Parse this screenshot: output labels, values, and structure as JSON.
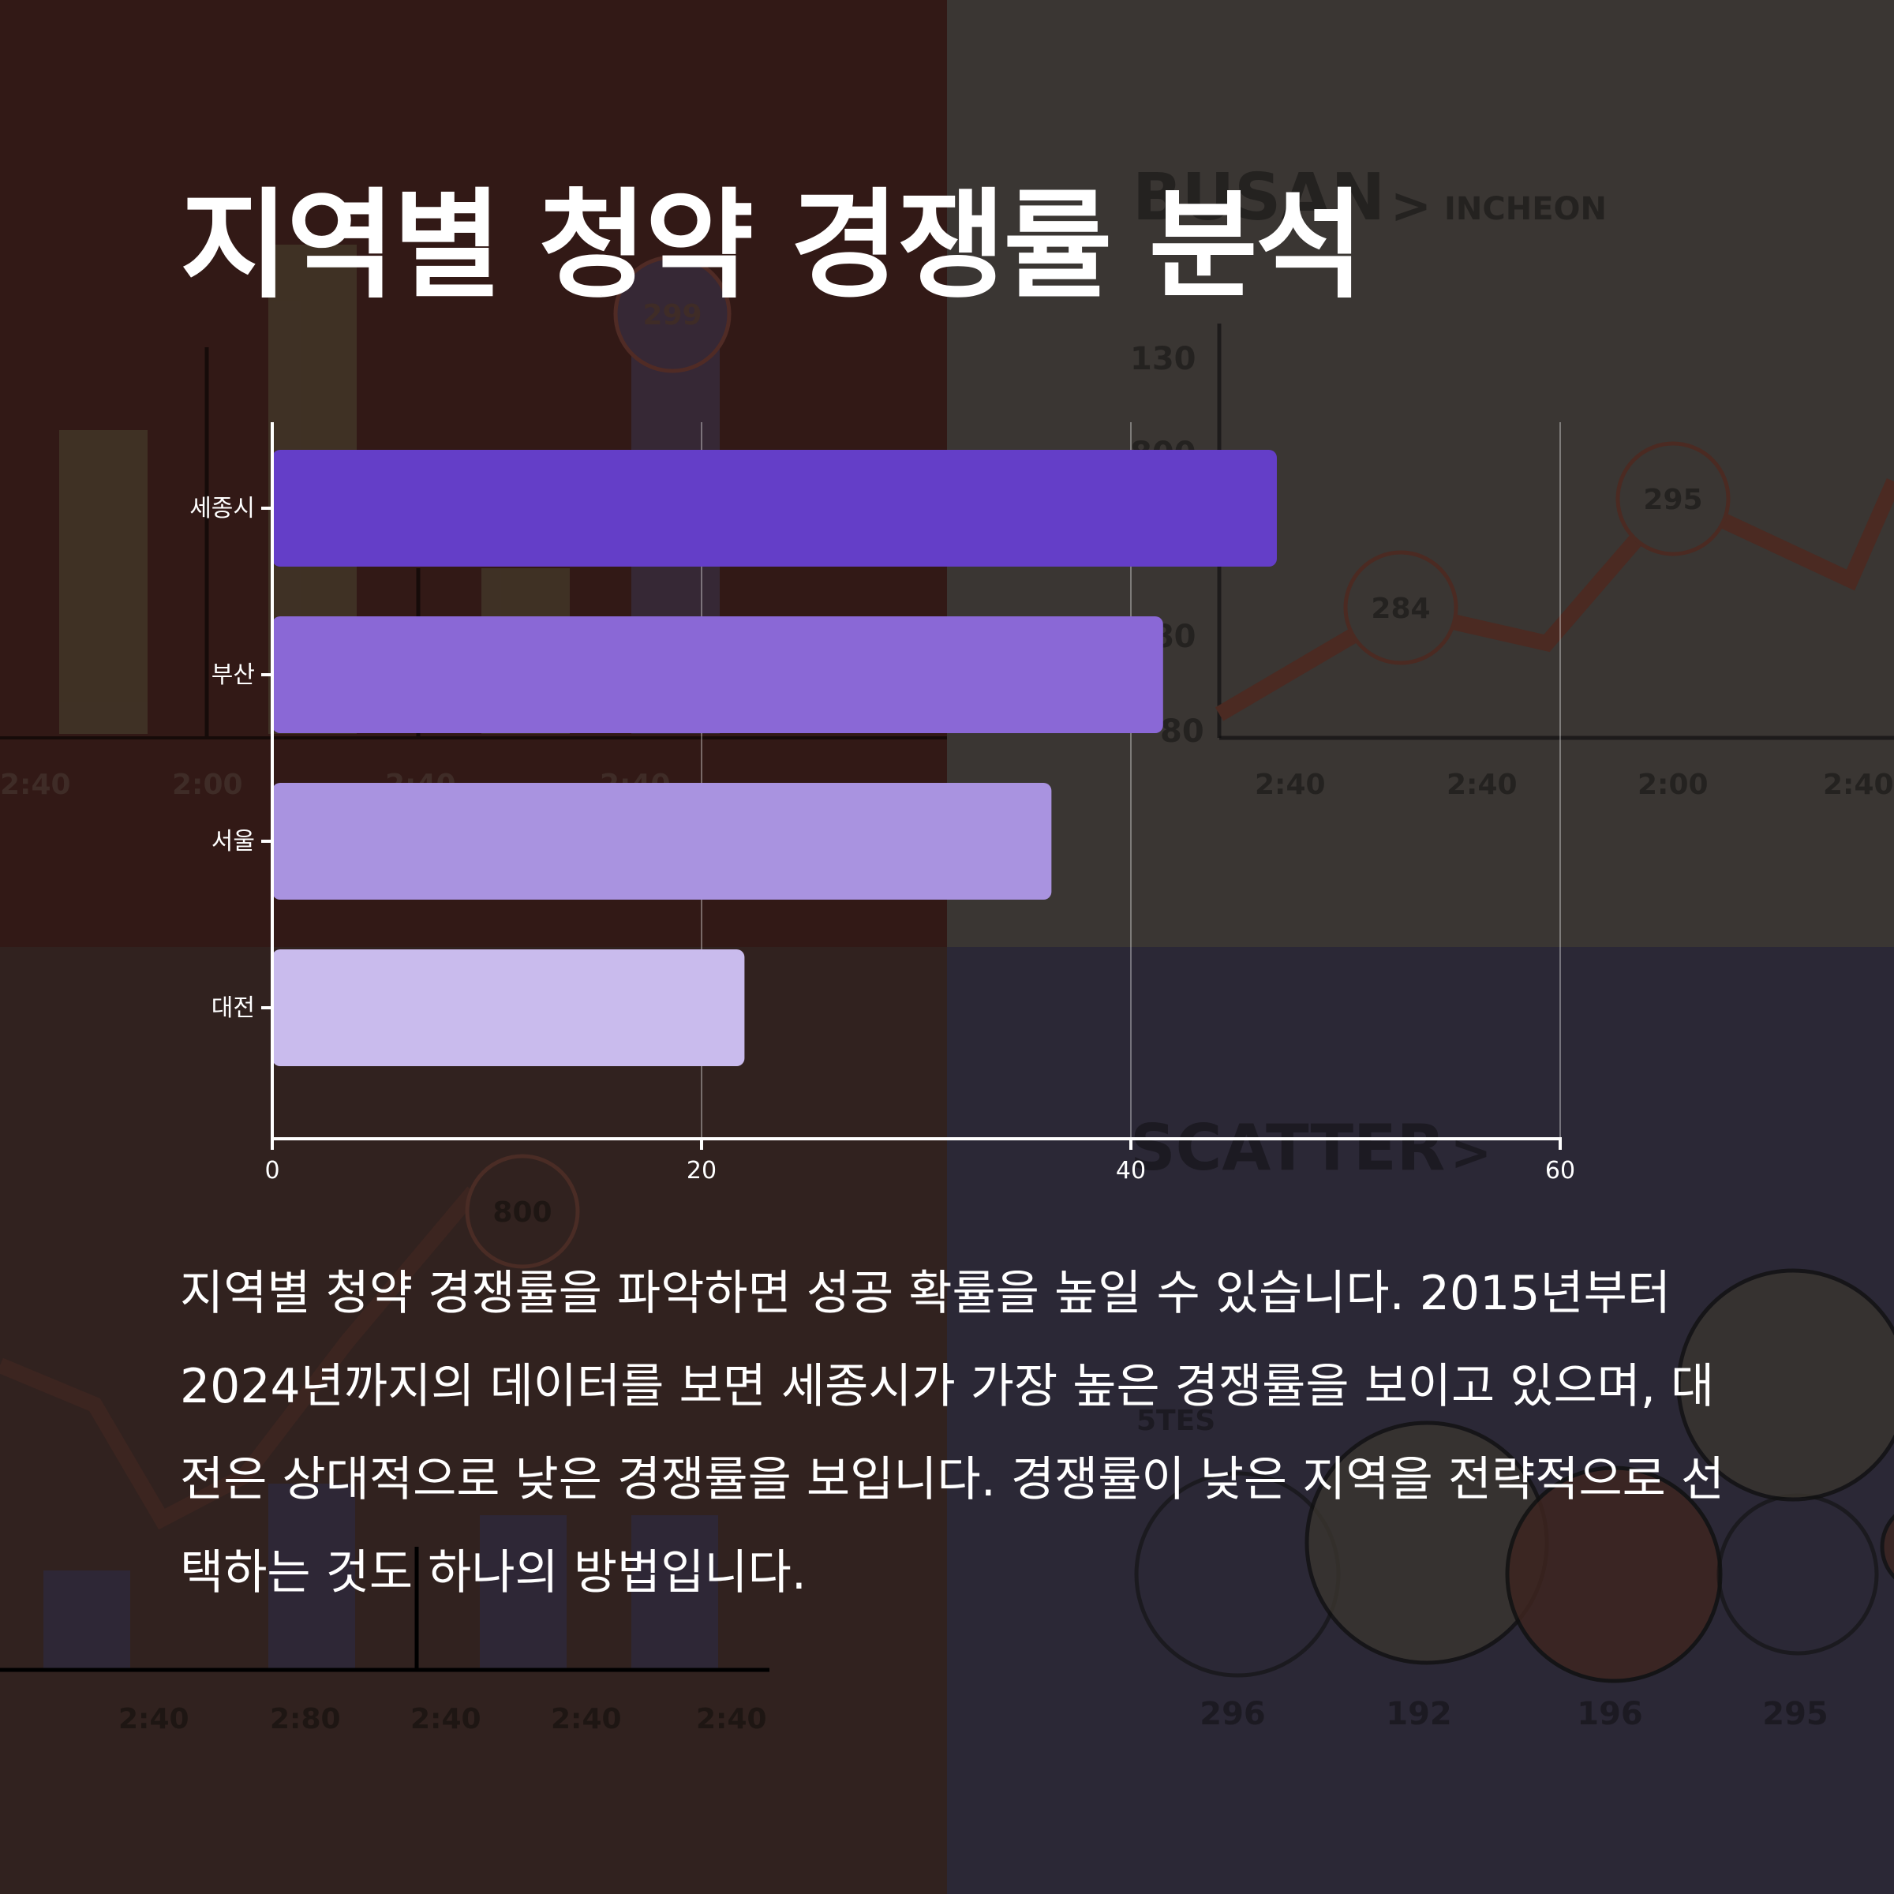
{
  "title": "지역별 청약 경쟁률 분석",
  "description": "지역별 청약 경쟁률을 파악하면 성공 확률을 높일 수 있습니다. 2015년부터 2024년까지의 데이터를 보면 세종시가 가장 높은 경쟁률을 보이고 있으며, 대전은 상대적으로 낮은 경쟁률을 보입니다. 경쟁률이 낮은 지역을 전략적으로 선택하는 것도 하나의 방법입니다.",
  "background": {
    "colors": {
      "top_left": "#321916",
      "top_right": "#3a3633",
      "bottom_left": "#31221f",
      "bottom_right": "#2b2836"
    },
    "texts": {
      "busan": "BUSAN",
      "chevron": ">",
      "incheon": "INCHEON",
      "scatter": "SCATTER",
      "stes": "5TES",
      "bubble_299": "299",
      "bubble_284": "284",
      "bubble_295": "295",
      "bubble_800": "800",
      "y_130": "130",
      "y_800": "800",
      "y_880": "880",
      "y_80": "80",
      "xt1_a": "2:40",
      "xt1_b": "2:00",
      "xt1_c": "2:40",
      "xt1_d": "2:40",
      "xt2_a": "2:40",
      "xt2_b": "2:40",
      "xt2_c": "2:00",
      "xt2_d": "2:40",
      "xt3_a": "2:40",
      "xt3_b": "2:80",
      "xt3_c": "2:40",
      "xt3_d": "2:40",
      "xt3_e": "2:40",
      "xt4_a": "296",
      "xt4_b": "192",
      "xt4_c": "196",
      "xt4_d": "295"
    }
  },
  "chart_data": {
    "type": "bar",
    "orientation": "horizontal",
    "categories": [
      "세종시",
      "부산",
      "서울",
      "대전"
    ],
    "values": [
      46.8,
      41.5,
      36.3,
      22
    ],
    "colors": [
      "#643ec8",
      "#8a68d6",
      "#a993e0",
      "#c9bbed"
    ],
    "xlim": [
      0,
      60
    ],
    "xticks": [
      "0",
      "20",
      "40",
      "60"
    ],
    "grid": "vertical",
    "xlabel": "",
    "ylabel": ""
  }
}
